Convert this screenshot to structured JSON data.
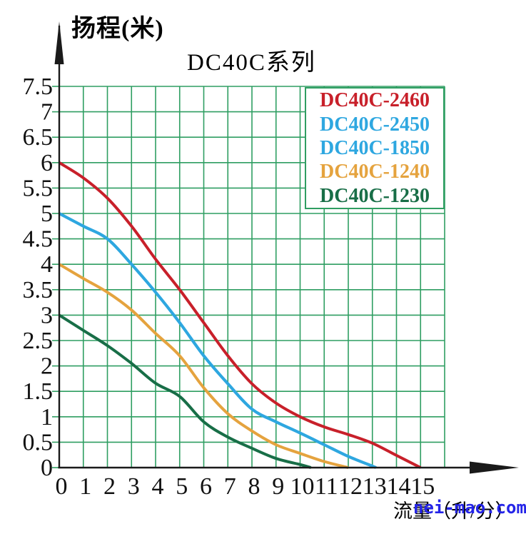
{
  "titles": {
    "y_axis_title": "扬程(米)",
    "chart_title": "DC40C系列",
    "x_axis_title": "流量（升/分）"
  },
  "watermark": {
    "text": "nei-mao.com",
    "color": "#2424e8"
  },
  "colors": {
    "grid": "#2f9e62",
    "axis": "#1a1a1a",
    "tick_text": "#111111",
    "legend_border": "#2f9e62",
    "background": "#ffffff"
  },
  "legend": {
    "items": [
      {
        "label": "DC40C-2460",
        "color": "#c8202a"
      },
      {
        "label": "DC40C-2450",
        "color": "#2ea7e0"
      },
      {
        "label": "DC40C-1850",
        "color": "#2ea7e0"
      },
      {
        "label": "DC40C-1240",
        "color": "#e5a33e"
      },
      {
        "label": "DC40C-1230",
        "color": "#186e47"
      }
    ]
  },
  "chart_data": {
    "type": "line",
    "title": "DC40C系列",
    "xlabel": "流量（升/分）",
    "ylabel": "扬程(米)",
    "xlim": [
      0,
      16
    ],
    "ylim": [
      0,
      7.5
    ],
    "x_ticks": [
      0,
      1,
      2,
      3,
      4,
      5,
      6,
      7,
      8,
      9,
      10,
      11,
      12,
      13,
      14,
      15
    ],
    "y_ticks": [
      0,
      0.5,
      1,
      1.5,
      2,
      2.5,
      3,
      3.5,
      4,
      4.5,
      5,
      5.5,
      6,
      6.5,
      7,
      7.5
    ],
    "grid": true,
    "grid_x_step": 1,
    "grid_y_step": 0.5,
    "legend_position": "top-right",
    "series": [
      {
        "name": "DC40C-2460",
        "color": "#c8202a",
        "points": [
          [
            0,
            6.0
          ],
          [
            1,
            5.7
          ],
          [
            2,
            5.3
          ],
          [
            3,
            4.75
          ],
          [
            4,
            4.1
          ],
          [
            5,
            3.5
          ],
          [
            6,
            2.85
          ],
          [
            7,
            2.2
          ],
          [
            8,
            1.65
          ],
          [
            9,
            1.27
          ],
          [
            10,
            1.0
          ],
          [
            11,
            0.8
          ],
          [
            12,
            0.65
          ],
          [
            13,
            0.48
          ],
          [
            14,
            0.24
          ],
          [
            15,
            0
          ]
        ]
      },
      {
        "name": "DC40C-2450",
        "color": "#2ea7e0",
        "points": [
          [
            0,
            5.0
          ],
          [
            1,
            4.75
          ],
          [
            2,
            4.5
          ],
          [
            3,
            4.0
          ],
          [
            4,
            3.45
          ],
          [
            5,
            2.85
          ],
          [
            6,
            2.2
          ],
          [
            7,
            1.65
          ],
          [
            8,
            1.15
          ],
          [
            9,
            0.9
          ],
          [
            10,
            0.68
          ],
          [
            11,
            0.45
          ],
          [
            12,
            0.22
          ],
          [
            13,
            0.03
          ],
          [
            13.15,
            0
          ]
        ]
      },
      {
        "name": "DC40C-1850",
        "color": "#2ea7e0",
        "note": "visually overlaps DC40C-2450 curve",
        "points": [
          [
            0,
            5.0
          ],
          [
            1,
            4.75
          ],
          [
            2,
            4.5
          ],
          [
            3,
            4.0
          ],
          [
            4,
            3.45
          ],
          [
            5,
            2.85
          ],
          [
            6,
            2.2
          ],
          [
            7,
            1.65
          ],
          [
            8,
            1.15
          ],
          [
            9,
            0.9
          ],
          [
            10,
            0.68
          ],
          [
            11,
            0.45
          ],
          [
            12,
            0.22
          ],
          [
            13,
            0.03
          ],
          [
            13.15,
            0
          ]
        ]
      },
      {
        "name": "DC40C-1240",
        "color": "#e5a33e",
        "points": [
          [
            0,
            4.0
          ],
          [
            1,
            3.72
          ],
          [
            2,
            3.45
          ],
          [
            3,
            3.1
          ],
          [
            4,
            2.64
          ],
          [
            5,
            2.2
          ],
          [
            6,
            1.57
          ],
          [
            7,
            1.06
          ],
          [
            8,
            0.72
          ],
          [
            9,
            0.45
          ],
          [
            10,
            0.28
          ],
          [
            11,
            0.12
          ],
          [
            12,
            0
          ]
        ]
      },
      {
        "name": "DC40C-1230",
        "color": "#186e47",
        "points": [
          [
            0,
            3.0
          ],
          [
            1,
            2.7
          ],
          [
            2,
            2.4
          ],
          [
            3,
            2.05
          ],
          [
            4,
            1.66
          ],
          [
            5,
            1.4
          ],
          [
            6,
            0.9
          ],
          [
            7,
            0.6
          ],
          [
            8,
            0.38
          ],
          [
            9,
            0.18
          ],
          [
            10,
            0.06
          ],
          [
            10.45,
            0
          ]
        ]
      }
    ]
  }
}
